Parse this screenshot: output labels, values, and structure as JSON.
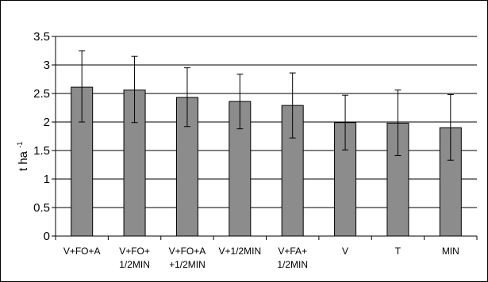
{
  "chart_data": {
    "type": "bar",
    "categories": [
      [
        "V+FO+A"
      ],
      [
        "V+FO+",
        "1/2MIN"
      ],
      [
        "V+FO+A",
        "+1/2MIN"
      ],
      [
        "V+1/2MIN"
      ],
      [
        "V+FA+",
        "1/2MIN"
      ],
      [
        "V"
      ],
      [
        "T"
      ],
      [
        "MIN"
      ]
    ],
    "values": [
      2.61,
      2.56,
      2.43,
      2.36,
      2.29,
      1.99,
      1.98,
      1.9
    ],
    "error_high": [
      3.25,
      3.15,
      2.95,
      2.84,
      2.86,
      2.47,
      2.56,
      2.48
    ],
    "error_low": [
      2.0,
      1.99,
      1.92,
      1.88,
      1.72,
      1.51,
      1.41,
      1.33
    ],
    "ylabel": "t ha",
    "ylabel_superscript": "-1",
    "ylim": [
      0,
      3.5
    ],
    "yticks": [
      "0",
      "0.5",
      "1",
      "1.5",
      "2",
      "2.5",
      "3",
      "3.5"
    ],
    "grid": true,
    "colors": {
      "bar": "#8c8c8c",
      "bar_edge": "#000000",
      "grid": "#000000",
      "background": "#ffffff"
    }
  }
}
